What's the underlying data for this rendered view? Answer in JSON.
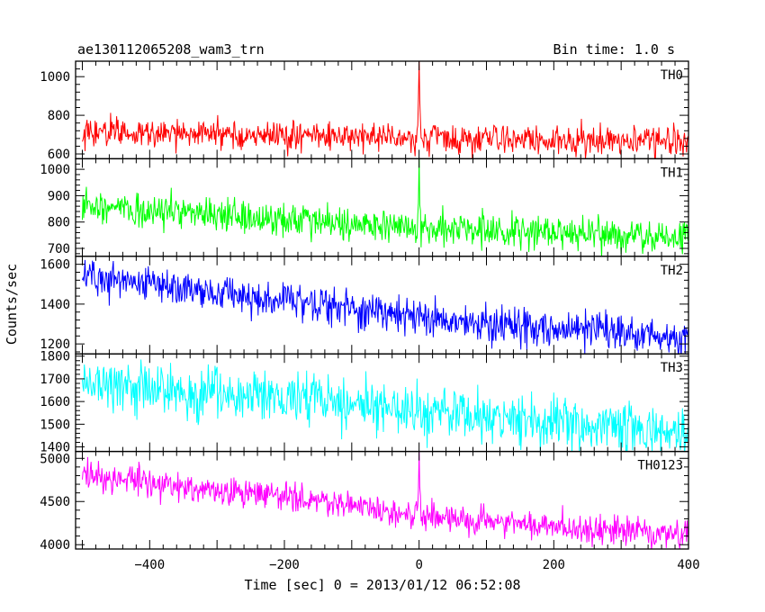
{
  "header": {
    "left_title": "ae130112065208_wam3_trn",
    "right_title": "Bin time: 1.0 s"
  },
  "axes": {
    "xlabel": "Time [sec] 0 = 2013/01/12 06:52:08",
    "ylabel": "Counts/sec"
  },
  "chart_data": {
    "type": "line",
    "x_range": [
      -510,
      400
    ],
    "x_ticks": [
      -400,
      -200,
      0,
      200,
      400
    ],
    "x_tick_labels": [
      "−400",
      "−200",
      "0",
      "200",
      "400"
    ],
    "bin_time_s": 1.0,
    "xlabel": "Time [sec] 0 = 2013/01/12 06:52:08",
    "ylabel": "Counts/sec",
    "title": "ae130112065208_wam3_trn",
    "subtitle": "Bin time: 1.0 s",
    "panels": [
      {
        "name": "TH0",
        "color": "#ff0000",
        "ylim": [
          575,
          1080
        ],
        "y_ticks": [
          600,
          800,
          1000
        ],
        "y_tick_labels": [
          "600",
          "800",
          "1000"
        ],
        "trend": {
          "x": [
            -500,
            -200,
            0,
            400
          ],
          "y": [
            715,
            695,
            680,
            660
          ]
        },
        "noise_amplitude": 38,
        "spike": {
          "x": 0,
          "peak": 1080
        }
      },
      {
        "name": "TH1",
        "color": "#00ff00",
        "ylim": [
          670,
          1040
        ],
        "y_ticks": [
          700,
          800,
          900,
          1000
        ],
        "y_tick_labels": [
          "700",
          "800",
          "900",
          "1000"
        ],
        "trend": {
          "x": [
            -500,
            -200,
            0,
            400
          ],
          "y": [
            860,
            810,
            780,
            740
          ]
        },
        "noise_amplitude": 32,
        "spike": {
          "x": 0,
          "peak": 1040
        }
      },
      {
        "name": "TH2",
        "color": "#0000ff",
        "ylim": [
          1150,
          1640
        ],
        "y_ticks": [
          1200,
          1400,
          1600
        ],
        "y_tick_labels": [
          "1200",
          "1400",
          "1600"
        ],
        "trend": {
          "x": [
            -500,
            -200,
            0,
            400
          ],
          "y": [
            1540,
            1420,
            1330,
            1230
          ]
        },
        "noise_amplitude": 45,
        "spike": null
      },
      {
        "name": "TH3",
        "color": "#00ffff",
        "ylim": [
          1380,
          1810
        ],
        "y_ticks": [
          1400,
          1500,
          1600,
          1700,
          1800
        ],
        "y_tick_labels": [
          "1400",
          "1500",
          "1600",
          "1700",
          "1800"
        ],
        "trend": {
          "x": [
            -500,
            -200,
            0,
            400
          ],
          "y": [
            1680,
            1620,
            1560,
            1460
          ]
        },
        "noise_amplitude": 55,
        "spike": null
      },
      {
        "name": "TH0123",
        "color": "#ff00ff",
        "ylim": [
          3950,
          5080
        ],
        "y_ticks": [
          4000,
          4500,
          5000
        ],
        "y_tick_labels": [
          "4000",
          "4500",
          "5000"
        ],
        "trend": {
          "x": [
            -500,
            -200,
            0,
            400
          ],
          "y": [
            4800,
            4550,
            4330,
            4100
          ]
        },
        "noise_amplitude": 85,
        "spike": {
          "x": 0,
          "peak": 5080
        }
      }
    ]
  }
}
